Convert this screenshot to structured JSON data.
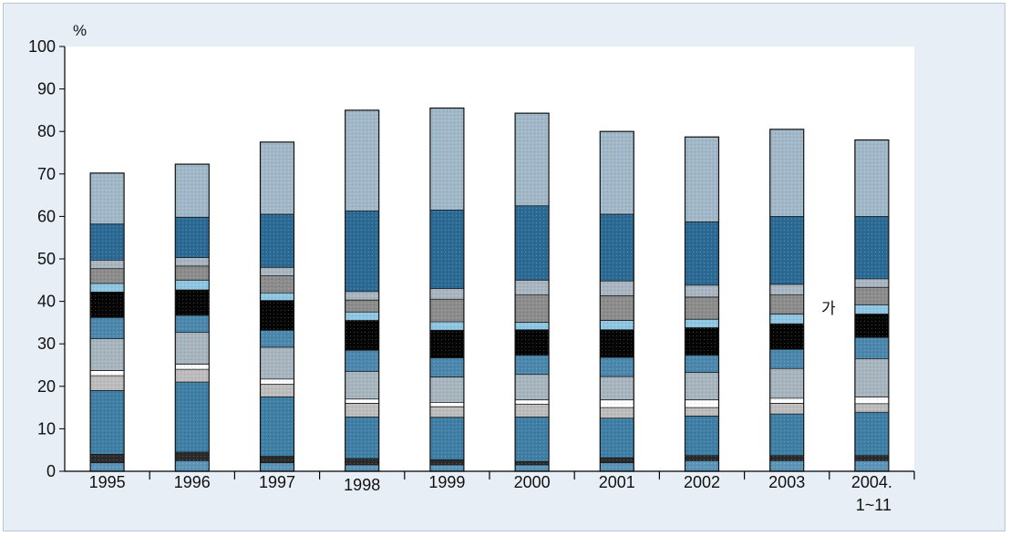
{
  "chart_data": {
    "type": "bar",
    "stacked": true,
    "title": "",
    "xlabel": "",
    "ylabel": "",
    "y_unit": "%",
    "ylim": [
      0,
      100
    ],
    "yticks": [
      0,
      10,
      20,
      30,
      40,
      50,
      60,
      70,
      80,
      90,
      100
    ],
    "categories": [
      "1995",
      "1996",
      "1997",
      "1998",
      "1999",
      "2000",
      "2001",
      "2002",
      "2003",
      "2004."
    ],
    "category_sublabels": [
      "",
      "",
      "",
      "",
      "",
      "",
      "",
      "",
      "",
      "1~11"
    ],
    "grid": false,
    "legend": "none",
    "annotation": "가",
    "series": [
      {
        "color": "#5c95b8",
        "values": [
          2,
          2.5,
          2,
          1.5,
          1.5,
          1.5,
          2,
          2.5,
          2.5,
          2.5
        ]
      },
      {
        "color": "#2b2b2b",
        "values": [
          2,
          2,
          1.5,
          1.5,
          1.2,
          0.8,
          1.2,
          1.2,
          1.2,
          1.2
        ]
      },
      {
        "color": "#3f7fa6",
        "values": [
          15,
          16.5,
          14,
          9.8,
          10,
          10.5,
          9.3,
          9.3,
          9.8,
          10.2
        ]
      },
      {
        "color": "#bdbdbd",
        "values": [
          3.5,
          3,
          3,
          3.2,
          2.5,
          3,
          2.5,
          2,
          2.5,
          2
        ]
      },
      {
        "color": "#ffffff",
        "values": [
          1.2,
          1.2,
          1.2,
          1,
          1,
          1,
          1.8,
          1.8,
          1.2,
          1.6
        ]
      },
      {
        "color": "#a7b5bf",
        "values": [
          7.5,
          7.5,
          7.5,
          6.5,
          6,
          6,
          5.5,
          6.5,
          7,
          9
        ]
      },
      {
        "color": "#4c88ad",
        "values": [
          5,
          4,
          4,
          5,
          4.5,
          4.5,
          4.5,
          4,
          4.5,
          5
        ]
      },
      {
        "color": "#050505",
        "values": [
          6,
          6,
          7,
          7,
          6.5,
          6,
          6.5,
          6.5,
          6,
          5.5
        ]
      },
      {
        "color": "#8fc6e2",
        "values": [
          2,
          2.3,
          1.8,
          2,
          2,
          1.8,
          2.2,
          2,
          2.3,
          2.2
        ]
      },
      {
        "color": "#8c8c8c",
        "values": [
          3.5,
          3.3,
          4,
          2.8,
          5.3,
          6.4,
          5.8,
          5.2,
          4.5,
          4.1
        ]
      },
      {
        "color": "#a9b6c1",
        "values": [
          2,
          2,
          2,
          2,
          2.5,
          3.5,
          3.5,
          2.8,
          2.5,
          2
        ]
      },
      {
        "color": "#2b6a95",
        "values": [
          8.5,
          9.5,
          12.5,
          19,
          18.5,
          17.5,
          15.7,
          14.9,
          16,
          14.7
        ]
      },
      {
        "color": "#a0b8c8",
        "values": [
          12,
          12.5,
          17,
          23.7,
          24,
          21.8,
          19.5,
          20,
          20.5,
          18
        ]
      }
    ]
  }
}
